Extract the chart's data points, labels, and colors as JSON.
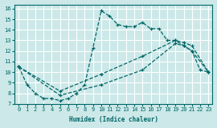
{
  "xlabel": "Humidex (Indice chaleur)",
  "bg_color": "#cce8e8",
  "grid_color": "#ffffff",
  "line_color": "#006666",
  "xlim": [
    -0.5,
    23.5
  ],
  "ylim": [
    7,
    16.4
  ],
  "yticks": [
    7,
    8,
    9,
    10,
    11,
    12,
    13,
    14,
    15,
    16
  ],
  "xticks": [
    0,
    1,
    2,
    3,
    4,
    5,
    6,
    7,
    8,
    9,
    10,
    11,
    12,
    13,
    14,
    15,
    16,
    17,
    18,
    19,
    20,
    21,
    22,
    23
  ],
  "curve1_x": [
    0,
    1,
    2,
    3,
    4,
    5,
    6,
    7,
    8,
    9,
    10,
    11,
    12,
    13,
    14,
    15,
    16,
    17,
    18,
    19,
    20,
    21,
    22,
    23
  ],
  "curve1_y": [
    10.5,
    8.8,
    8.0,
    7.5,
    7.5,
    7.3,
    7.5,
    8.0,
    8.8,
    12.3,
    15.8,
    15.3,
    14.5,
    14.3,
    14.3,
    14.7,
    14.1,
    14.1,
    13.0,
    13.0,
    12.5,
    12.0,
    10.2,
    10.0
  ],
  "curve2_x": [
    0,
    5,
    10,
    15,
    19,
    20,
    21,
    23
  ],
  "curve2_y": [
    10.5,
    8.2,
    9.8,
    11.5,
    13.0,
    12.8,
    12.5,
    10.0
  ],
  "curve3_x": [
    0,
    5,
    10,
    15,
    19,
    20,
    21,
    23
  ],
  "curve3_y": [
    10.5,
    7.8,
    8.8,
    10.2,
    12.7,
    12.5,
    12.0,
    10.0
  ]
}
